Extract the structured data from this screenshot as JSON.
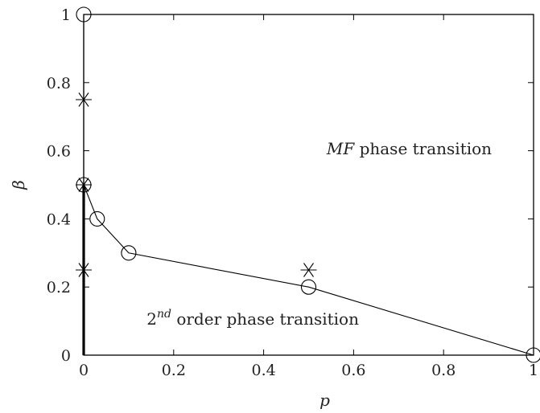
{
  "chart_data": {
    "type": "scatter",
    "xlabel": "p",
    "ylabel": "β",
    "xlim": [
      0,
      1
    ],
    "ylim": [
      0,
      1
    ],
    "x_ticks": [
      "0",
      "0.2",
      "0.4",
      "0.6",
      "0.8",
      "1"
    ],
    "y_ticks": [
      "0",
      "0.2",
      "0.4",
      "0.6",
      "0.8",
      "1"
    ],
    "grid": false,
    "series": [
      {
        "marker": "circle",
        "connected": true,
        "points": [
          [
            0,
            1
          ],
          [
            0,
            0.5
          ],
          [
            0.03,
            0.4
          ],
          [
            0.1,
            0.3
          ],
          [
            0.5,
            0.2
          ],
          [
            1,
            0
          ]
        ]
      },
      {
        "marker": "star",
        "connected": false,
        "points": [
          [
            0,
            0.75
          ],
          [
            0,
            0.5
          ],
          [
            0,
            0.25
          ],
          [
            0.5,
            0.25
          ]
        ]
      }
    ],
    "thick_line": {
      "x": 0,
      "y_from": 0,
      "y_to": 0.5
    },
    "annotations": [
      {
        "text_italic": "MF",
        "text_rest": " phase transition",
        "x": 0.54,
        "y": 0.59
      },
      {
        "text_base": "2",
        "text_sup": "nd",
        "text_rest": " order phase transition",
        "x": 0.14,
        "y": 0.09
      }
    ]
  }
}
